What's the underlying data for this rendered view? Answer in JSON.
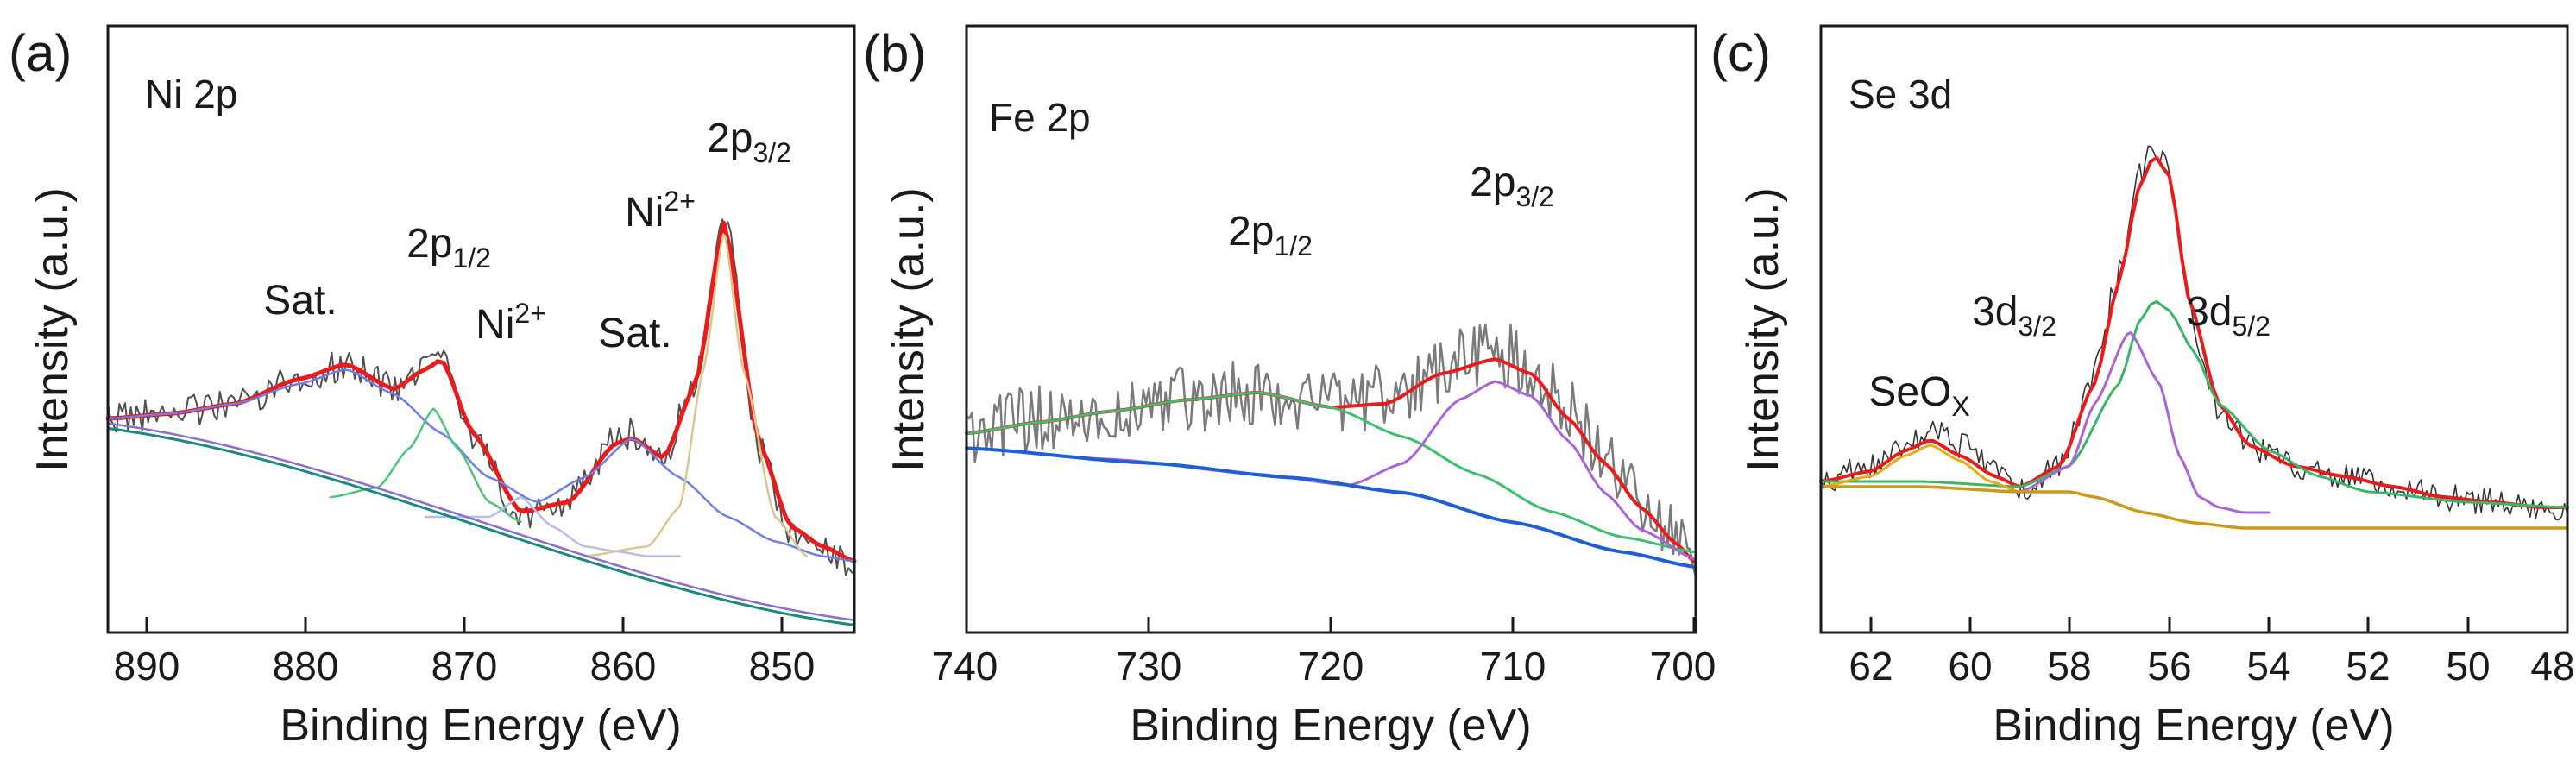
{
  "chart_data": [
    {
      "type": "line",
      "panel_label": "(a)",
      "element_label": "Ni 2p",
      "xlabel": "Binding Energy (eV)",
      "ylabel": "Intensity (a.u.)",
      "xlim": [
        892,
        845
      ],
      "ylim": [
        0,
        100
      ],
      "x_reversed": true,
      "x_ticks": [
        890,
        880,
        870,
        860,
        850
      ],
      "grid": false,
      "legend": "none",
      "series": [
        {
          "name": "raw",
          "color": "#505050",
          "width": 2,
          "noise": 3.2,
          "seed": 11,
          "x": [
            892,
            888,
            884,
            880,
            877,
            874,
            872,
            871,
            869,
            866,
            863,
            860,
            859,
            857,
            855,
            853.2,
            851,
            849,
            847,
            845
          ],
          "y": [
            50,
            51,
            53,
            58,
            61,
            56,
            61,
            64,
            46,
            30,
            33,
            46,
            47,
            42,
            58,
            92,
            44,
            27,
            24,
            20
          ]
        },
        {
          "name": "fit",
          "color": "#e81c1c",
          "width": 5,
          "x": [
            892,
            888,
            884,
            880,
            877,
            874,
            872,
            871,
            869,
            866,
            863,
            860,
            859,
            857,
            855,
            853.2,
            851,
            849,
            847,
            845
          ],
          "y": [
            50,
            51,
            53,
            58,
            61,
            56,
            60,
            62,
            47,
            31,
            33,
            45,
            46,
            42,
            57,
            90,
            45,
            28,
            24,
            21
          ]
        },
        {
          "name": "Ni2+ 2p1/2 envelope",
          "color": "#6f7ee8",
          "width": 2.5,
          "x": [
            892,
            888,
            884,
            880,
            877,
            874,
            871,
            868,
            865,
            862,
            859,
            856,
            853,
            850,
            847,
            845
          ],
          "y": [
            50,
            51,
            53,
            57,
            60,
            55,
            47,
            38,
            33,
            38,
            46,
            38,
            30,
            25,
            22,
            21
          ]
        },
        {
          "name": "2p1/2",
          "color": "#4fc47a",
          "width": 2.5,
          "x": [
            878,
            875,
            873,
            871.5,
            870,
            868,
            866
          ],
          "y": [
            34,
            36,
            44,
            52,
            44,
            33,
            29
          ]
        },
        {
          "name": "Ni2+ 2p3/2",
          "color": "#d8c78e",
          "width": 2.5,
          "x": [
            862,
            858,
            856,
            854.5,
            853.2,
            852,
            850,
            848
          ],
          "y": [
            22,
            24,
            32,
            60,
            88,
            60,
            30,
            22
          ]
        },
        {
          "name": "Ni2+",
          "color": "#b6bde8",
          "width": 2.5,
          "x": [
            872,
            868,
            866,
            864,
            862,
            860,
            858,
            856
          ],
          "y": [
            30,
            30,
            34,
            28,
            24,
            23,
            22,
            22
          ]
        },
        {
          "name": "background",
          "color": "#1a8a80",
          "width": 3,
          "x": [
            892,
            845
          ],
          "y": [
            48,
            8
          ]
        },
        {
          "name": "background-2",
          "color": "#8a6fd0",
          "width": 2.5,
          "x": [
            892,
            845
          ],
          "y": [
            49,
            9
          ]
        }
      ],
      "peak_labels": [
        "Sat.",
        "2p",
        "Ni",
        "Sat.",
        "Ni",
        "2p"
      ],
      "peak_label_sub": [
        "",
        "1/2",
        "",
        "",
        "",
        "3/2"
      ],
      "peak_label_sup": [
        "",
        "",
        "2+",
        "",
        "2+",
        ""
      ]
    },
    {
      "type": "line",
      "panel_label": "(b)",
      "element_label": "Fe 2p",
      "xlabel": "Binding Energy (eV)",
      "ylabel": "Intensity (a.u.)",
      "xlim": [
        740,
        700
      ],
      "ylim": [
        0,
        100
      ],
      "x_reversed": true,
      "x_ticks": [
        740,
        730,
        720,
        710,
        700
      ],
      "grid": false,
      "legend": "none",
      "series": [
        {
          "name": "raw",
          "color": "#7a7a7a",
          "width": 2.5,
          "noise": 9,
          "seed": 23,
          "x": [
            740,
            736,
            732,
            728,
            724,
            720,
            716,
            713,
            711,
            709,
            707,
            705,
            703,
            701,
            700
          ],
          "y": [
            47,
            50,
            53,
            55,
            57,
            54,
            58,
            65,
            68,
            64,
            52,
            40,
            28,
            18,
            12
          ]
        },
        {
          "name": "fit",
          "color": "#e81c1c",
          "width": 4,
          "x": [
            740,
            736,
            732,
            728,
            724,
            720,
            717,
            714,
            711,
            709,
            707,
            705,
            703,
            701,
            700
          ],
          "y": [
            46,
            49,
            52,
            55,
            57,
            53,
            54,
            62,
            66,
            62,
            50,
            38,
            26,
            16,
            11
          ]
        },
        {
          "name": "2p1/2 component",
          "color": "#3cbf6e",
          "width": 3,
          "x": [
            740,
            736,
            732,
            728,
            724,
            720,
            716,
            712,
            708,
            704,
            700
          ],
          "y": [
            46,
            49,
            52,
            55,
            57,
            53,
            45,
            35,
            25,
            18,
            14
          ]
        },
        {
          "name": "2p3/2 component",
          "color": "#a865d8",
          "width": 3,
          "x": [
            740,
            732,
            724,
            719,
            716,
            713,
            711,
            709,
            707,
            705,
            703,
            700
          ],
          "y": [
            42,
            39,
            35,
            32,
            38,
            55,
            60,
            56,
            44,
            30,
            20,
            12
          ]
        },
        {
          "name": "background",
          "color": "#1f5fd6",
          "width": 4,
          "x": [
            740,
            730,
            722,
            716,
            710,
            704,
            700
          ],
          "y": [
            42,
            38,
            34,
            30,
            22,
            14,
            10
          ]
        }
      ],
      "peak_labels": [
        "2p",
        "2p"
      ],
      "peak_label_sub": [
        "1/2",
        "3/2"
      ],
      "peak_label_sup": [
        "",
        ""
      ]
    },
    {
      "type": "line",
      "panel_label": "(c)",
      "element_label": "Se 3d",
      "xlabel": "Binding Energy (eV)",
      "ylabel": "Intensity (a.u.)",
      "xlim": [
        63,
        48
      ],
      "ylim": [
        0,
        100
      ],
      "x_reversed": true,
      "x_ticks": [
        62,
        60,
        58,
        56,
        54,
        52,
        50,
        48
      ],
      "grid": false,
      "legend": "none",
      "series": [
        {
          "name": "raw",
          "color": "#333333",
          "width": 1.6,
          "noise": 2.6,
          "seed": 37,
          "x": [
            63,
            62,
            61.3,
            60.8,
            60.2,
            59.5,
            59,
            58.2,
            57.5,
            57,
            56.6,
            56.3,
            56,
            55.6,
            55,
            54.4,
            53.5,
            52.5,
            51.5,
            50.5,
            49.5,
            48.5,
            48
          ],
          "y": [
            27,
            30,
            34,
            37,
            34,
            30,
            25,
            30,
            48,
            68,
            86,
            92,
            88,
            60,
            40,
            34,
            30,
            28,
            26,
            24,
            23,
            22,
            22
          ]
        },
        {
          "name": "fit",
          "color": "#e81c1c",
          "width": 4,
          "x": [
            63,
            62,
            61.3,
            60.8,
            60.2,
            59.5,
            59,
            58.2,
            57.5,
            57,
            56.6,
            56.3,
            56,
            55.6,
            55,
            54.4,
            53.5,
            52.5,
            51.5,
            50.5,
            49.5,
            48.5,
            48
          ],
          "y": [
            27,
            29,
            33,
            35,
            32,
            28,
            26,
            30,
            46,
            66,
            84,
            90,
            86,
            62,
            42,
            34,
            30,
            28,
            26,
            24,
            23,
            22,
            22
          ]
        },
        {
          "name": "3d5/2",
          "color": "#3cb56a",
          "width": 3,
          "x": [
            63,
            61,
            59,
            58,
            57,
            56.6,
            56.3,
            56,
            55.5,
            55,
            54,
            53,
            52,
            50,
            48
          ],
          "y": [
            27,
            27,
            26,
            30,
            46,
            58,
            62,
            60,
            52,
            42,
            33,
            28,
            25,
            23,
            22
          ]
        },
        {
          "name": "3d3/2",
          "color": "#a865d8",
          "width": 3,
          "x": [
            63,
            61,
            59,
            58,
            57.5,
            56.8,
            56.2,
            55.8,
            55.4,
            55,
            54.5,
            54
          ],
          "y": [
            26,
            26,
            25,
            30,
            42,
            56,
            46,
            32,
            24,
            22,
            21,
            21
          ]
        },
        {
          "name": "SeOx",
          "color": "#e0ad16",
          "width": 3,
          "x": [
            63,
            62,
            61.3,
            60.8,
            60.2,
            59.6,
            59,
            58.5
          ],
          "y": [
            26,
            28,
            32,
            34,
            31,
            27,
            25,
            25
          ]
        },
        {
          "name": "background",
          "color": "#cc9a1a",
          "width": 3.5,
          "x": [
            63,
            61,
            59,
            58,
            57.5,
            56.5,
            55.5,
            54.5,
            53,
            51,
            49,
            48
          ],
          "y": [
            26,
            26,
            25,
            25,
            24,
            21,
            19,
            18,
            18,
            18,
            18,
            18
          ]
        }
      ],
      "peak_labels": [
        "SeO",
        "3d",
        "3d"
      ],
      "peak_label_sub": [
        "X",
        "3/2",
        "5/2"
      ],
      "peak_label_sup": [
        "",
        "",
        ""
      ]
    }
  ]
}
